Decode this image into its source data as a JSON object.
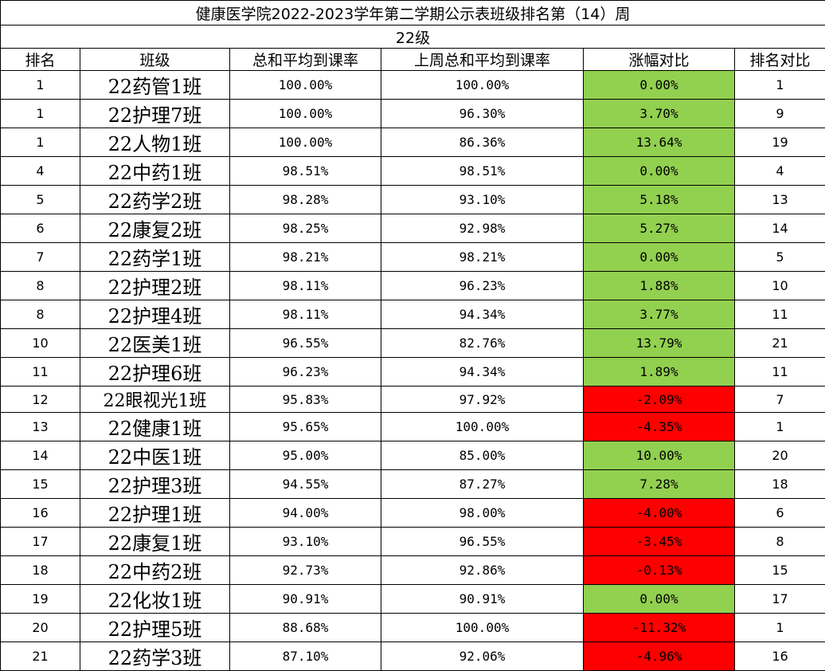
{
  "title": "健康医学院2022-2023学年第二学期公示表班级排名第（14）周",
  "subtitle": "22级",
  "headers": [
    "排名",
    "班级",
    "总和平均到课率",
    "上周总和平均到课率",
    "涨幅对比",
    "排名对比"
  ],
  "colors": {
    "increase": "#92d050",
    "decrease": "#ff0000"
  },
  "rows": [
    {
      "rank": "1",
      "class": "22药管1班",
      "rate": "100.00%",
      "last": "100.00%",
      "change": "0.00%",
      "prev_rank": "1",
      "trend": "up"
    },
    {
      "rank": "1",
      "class": "22护理7班",
      "rate": "100.00%",
      "last": "96.30%",
      "change": "3.70%",
      "prev_rank": "9",
      "trend": "up"
    },
    {
      "rank": "1",
      "class": "22人物1班",
      "rate": "100.00%",
      "last": "86.36%",
      "change": "13.64%",
      "prev_rank": "19",
      "trend": "up"
    },
    {
      "rank": "4",
      "class": "22中药1班",
      "rate": "98.51%",
      "last": "98.51%",
      "change": "0.00%",
      "prev_rank": "4",
      "trend": "up"
    },
    {
      "rank": "5",
      "class": "22药学2班",
      "rate": "98.28%",
      "last": "93.10%",
      "change": "5.18%",
      "prev_rank": "13",
      "trend": "up"
    },
    {
      "rank": "6",
      "class": "22康复2班",
      "rate": "98.25%",
      "last": "92.98%",
      "change": "5.27%",
      "prev_rank": "14",
      "trend": "up"
    },
    {
      "rank": "7",
      "class": "22药学1班",
      "rate": "98.21%",
      "last": "98.21%",
      "change": "0.00%",
      "prev_rank": "5",
      "trend": "up"
    },
    {
      "rank": "8",
      "class": "22护理2班",
      "rate": "98.11%",
      "last": "96.23%",
      "change": "1.88%",
      "prev_rank": "10",
      "trend": "up"
    },
    {
      "rank": "8",
      "class": "22护理4班",
      "rate": "98.11%",
      "last": "94.34%",
      "change": "3.77%",
      "prev_rank": "11",
      "trend": "up"
    },
    {
      "rank": "10",
      "class": "22医美1班",
      "rate": "96.55%",
      "last": "82.76%",
      "change": "13.79%",
      "prev_rank": "21",
      "trend": "up"
    },
    {
      "rank": "11",
      "class": "22护理6班",
      "rate": "96.23%",
      "last": "94.34%",
      "change": "1.89%",
      "prev_rank": "11",
      "trend": "up"
    },
    {
      "rank": "12",
      "class": "22眼视光1班",
      "rate": "95.83%",
      "last": "97.92%",
      "change": "-2.09%",
      "prev_rank": "7",
      "trend": "down"
    },
    {
      "rank": "13",
      "class": "22健康1班",
      "rate": "95.65%",
      "last": "100.00%",
      "change": "-4.35%",
      "prev_rank": "1",
      "trend": "down"
    },
    {
      "rank": "14",
      "class": "22中医1班",
      "rate": "95.00%",
      "last": "85.00%",
      "change": "10.00%",
      "prev_rank": "20",
      "trend": "up"
    },
    {
      "rank": "15",
      "class": "22护理3班",
      "rate": "94.55%",
      "last": "87.27%",
      "change": "7.28%",
      "prev_rank": "18",
      "trend": "up"
    },
    {
      "rank": "16",
      "class": "22护理1班",
      "rate": "94.00%",
      "last": "98.00%",
      "change": "-4.00%",
      "prev_rank": "6",
      "trend": "down"
    },
    {
      "rank": "17",
      "class": "22康复1班",
      "rate": "93.10%",
      "last": "96.55%",
      "change": "-3.45%",
      "prev_rank": "8",
      "trend": "down"
    },
    {
      "rank": "18",
      "class": "22中药2班",
      "rate": "92.73%",
      "last": "92.86%",
      "change": "-0.13%",
      "prev_rank": "15",
      "trend": "down"
    },
    {
      "rank": "19",
      "class": "22化妆1班",
      "rate": "90.91%",
      "last": "90.91%",
      "change": "0.00%",
      "prev_rank": "17",
      "trend": "up"
    },
    {
      "rank": "20",
      "class": "22护理5班",
      "rate": "88.68%",
      "last": "100.00%",
      "change": "-11.32%",
      "prev_rank": "1",
      "trend": "down"
    },
    {
      "rank": "21",
      "class": "22药学3班",
      "rate": "87.10%",
      "last": "92.06%",
      "change": "-4.96%",
      "prev_rank": "16",
      "trend": "down"
    }
  ]
}
